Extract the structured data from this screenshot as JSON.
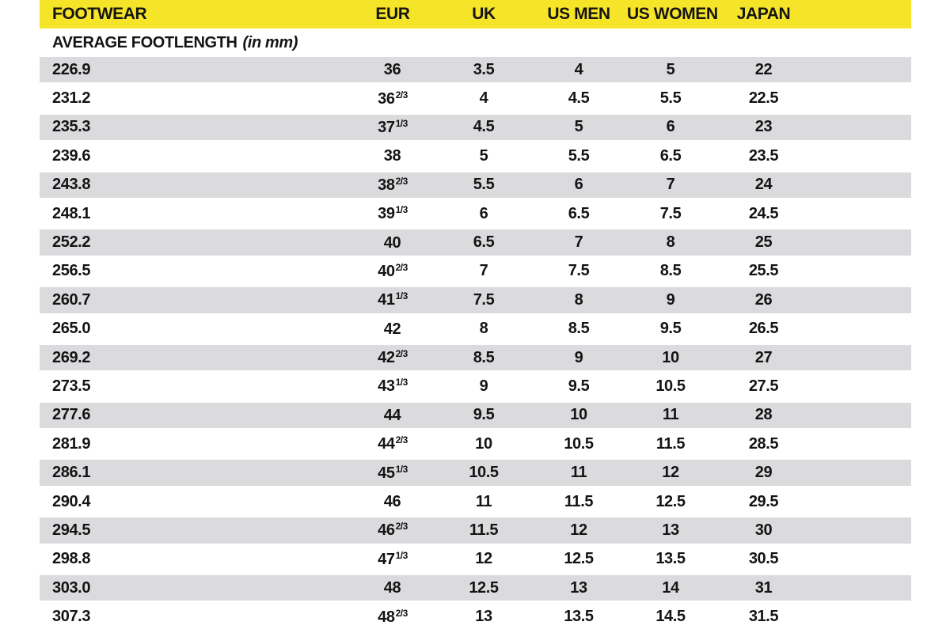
{
  "table": {
    "title_column": "FOOTWEAR",
    "header": {
      "footwear": "FOOTWEAR",
      "eur": "EUR",
      "uk": "UK",
      "us_men": "US MEN",
      "us_women": "US WOMEN",
      "japan": "JAPAN"
    },
    "subheader": {
      "label": "AVERAGE FOOTLENGTH",
      "note": "(in mm)"
    },
    "rows": [
      {
        "footlength_mm": "226.9",
        "eur": "36",
        "eur_frac": "",
        "uk": "3.5",
        "us_men": "4",
        "us_women": "5",
        "japan": "22"
      },
      {
        "footlength_mm": "231.2",
        "eur": "36",
        "eur_frac": "2/3",
        "uk": "4",
        "us_men": "4.5",
        "us_women": "5.5",
        "japan": "22.5"
      },
      {
        "footlength_mm": "235.3",
        "eur": "37",
        "eur_frac": "1/3",
        "uk": "4.5",
        "us_men": "5",
        "us_women": "6",
        "japan": "23"
      },
      {
        "footlength_mm": "239.6",
        "eur": "38",
        "eur_frac": "",
        "uk": "5",
        "us_men": "5.5",
        "us_women": "6.5",
        "japan": "23.5"
      },
      {
        "footlength_mm": "243.8",
        "eur": "38",
        "eur_frac": "2/3",
        "uk": "5.5",
        "us_men": "6",
        "us_women": "7",
        "japan": "24"
      },
      {
        "footlength_mm": "248.1",
        "eur": "39",
        "eur_frac": "1/3",
        "uk": "6",
        "us_men": "6.5",
        "us_women": "7.5",
        "japan": "24.5"
      },
      {
        "footlength_mm": "252.2",
        "eur": "40",
        "eur_frac": "",
        "uk": "6.5",
        "us_men": "7",
        "us_women": "8",
        "japan": "25"
      },
      {
        "footlength_mm": "256.5",
        "eur": "40",
        "eur_frac": "2/3",
        "uk": "7",
        "us_men": "7.5",
        "us_women": "8.5",
        "japan": "25.5"
      },
      {
        "footlength_mm": "260.7",
        "eur": "41",
        "eur_frac": "1/3",
        "uk": "7.5",
        "us_men": "8",
        "us_women": "9",
        "japan": "26"
      },
      {
        "footlength_mm": "265.0",
        "eur": "42",
        "eur_frac": "",
        "uk": "8",
        "us_men": "8.5",
        "us_women": "9.5",
        "japan": "26.5"
      },
      {
        "footlength_mm": "269.2",
        "eur": "42",
        "eur_frac": "2/3",
        "uk": "8.5",
        "us_men": "9",
        "us_women": "10",
        "japan": "27"
      },
      {
        "footlength_mm": "273.5",
        "eur": "43",
        "eur_frac": "1/3",
        "uk": "9",
        "us_men": "9.5",
        "us_women": "10.5",
        "japan": "27.5"
      },
      {
        "footlength_mm": "277.6",
        "eur": "44",
        "eur_frac": "",
        "uk": "9.5",
        "us_men": "10",
        "us_women": "11",
        "japan": "28"
      },
      {
        "footlength_mm": "281.9",
        "eur": "44",
        "eur_frac": "2/3",
        "uk": "10",
        "us_men": "10.5",
        "us_women": "11.5",
        "japan": "28.5"
      },
      {
        "footlength_mm": "286.1",
        "eur": "45",
        "eur_frac": "1/3",
        "uk": "10.5",
        "us_men": "11",
        "us_women": "12",
        "japan": "29"
      },
      {
        "footlength_mm": "290.4",
        "eur": "46",
        "eur_frac": "",
        "uk": "11",
        "us_men": "11.5",
        "us_women": "12.5",
        "japan": "29.5"
      },
      {
        "footlength_mm": "294.5",
        "eur": "46",
        "eur_frac": "2/3",
        "uk": "11.5",
        "us_men": "12",
        "us_women": "13",
        "japan": "30"
      },
      {
        "footlength_mm": "298.8",
        "eur": "47",
        "eur_frac": "1/3",
        "uk": "12",
        "us_men": "12.5",
        "us_women": "13.5",
        "japan": "30.5"
      },
      {
        "footlength_mm": "303.0",
        "eur": "48",
        "eur_frac": "",
        "uk": "12.5",
        "us_men": "13",
        "us_women": "14",
        "japan": "31"
      },
      {
        "footlength_mm": "307.3",
        "eur": "48",
        "eur_frac": "2/3",
        "uk": "13",
        "us_men": "13.5",
        "us_women": "14.5",
        "japan": "31.5"
      }
    ],
    "colors": {
      "header_bg": "#F6E428",
      "row_alt_bg": "#DBDBDE",
      "row_bg": "#FFFFFF",
      "text": "#141414"
    }
  }
}
